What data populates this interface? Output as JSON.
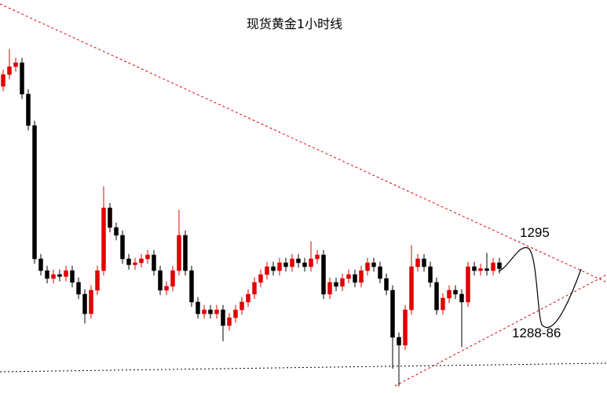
{
  "chart_data": {
    "type": "candlestick",
    "title": "现货黄金1小时线",
    "annotations": [
      "1295",
      "1288-86"
    ],
    "up_color": "#e00000",
    "down_color": "#000000",
    "ylim": [
      1280,
      1320
    ],
    "open": [
      1311.2,
      1312.4,
      1313.2,
      1313.6,
      1310.4,
      1307.2,
      1293.6,
      1292.4,
      1291.6,
      1292.0,
      1291.8,
      1292.4,
      1291.2,
      1290.0,
      1288.0,
      1290.4,
      1292.4,
      1298.8,
      1296.8,
      1296.0,
      1293.6,
      1293.0,
      1293.2,
      1293.6,
      1294.0,
      1292.4,
      1290.4,
      1290.8,
      1292.4,
      1296.0,
      1292.4,
      1289.2,
      1288.0,
      1288.4,
      1288.0,
      1288.4,
      1286.8,
      1287.6,
      1288.4,
      1289.2,
      1290.0,
      1291.2,
      1292.0,
      1292.8,
      1292.4,
      1293.2,
      1292.8,
      1293.6,
      1293.2,
      1292.8,
      1293.6,
      1294.0,
      1290.0,
      1291.2,
      1290.8,
      1291.6,
      1292.0,
      1291.2,
      1292.4,
      1293.2,
      1292.8,
      1291.6,
      1290.4,
      1285.6,
      1284.8,
      1288.4,
      1292.8,
      1293.6,
      1292.8,
      1291.2,
      1288.4,
      1289.6,
      1290.4,
      1290.0,
      1289.2,
      1292.8,
      1292.4,
      1292.6,
      1292.4,
      1293.2
    ],
    "high": [
      1312.9,
      1315.0,
      1314.1,
      1314.1,
      1310.9,
      1307.7,
      1294.1,
      1292.9,
      1292.5,
      1292.5,
      1292.9,
      1292.9,
      1291.7,
      1290.5,
      1290.9,
      1292.9,
      1301.0,
      1299.3,
      1297.3,
      1296.5,
      1294.1,
      1293.7,
      1294.1,
      1294.5,
      1294.5,
      1292.9,
      1291.3,
      1292.9,
      1298.6,
      1296.5,
      1292.9,
      1289.7,
      1288.9,
      1288.9,
      1288.9,
      1288.9,
      1288.1,
      1288.9,
      1289.7,
      1290.5,
      1291.7,
      1292.5,
      1293.3,
      1293.3,
      1293.7,
      1293.7,
      1294.1,
      1294.1,
      1293.7,
      1295.4,
      1294.5,
      1294.5,
      1291.7,
      1291.7,
      1292.1,
      1292.5,
      1292.5,
      1292.9,
      1293.7,
      1293.7,
      1293.3,
      1292.1,
      1290.9,
      1286.1,
      1288.9,
      1295.0,
      1294.1,
      1294.1,
      1293.3,
      1291.7,
      1290.1,
      1290.9,
      1290.9,
      1290.5,
      1293.3,
      1293.3,
      1293.1,
      1294.2,
      1293.7,
      1293.7
    ],
    "low": [
      1310.7,
      1311.9,
      1312.7,
      1309.9,
      1306.7,
      1293.1,
      1291.9,
      1291.1,
      1291.1,
      1291.3,
      1291.3,
      1290.7,
      1289.5,
      1287.0,
      1287.5,
      1289.9,
      1291.9,
      1296.3,
      1295.5,
      1293.1,
      1292.5,
      1292.5,
      1292.7,
      1293.1,
      1291.9,
      1289.9,
      1289.9,
      1290.3,
      1291.9,
      1291.9,
      1288.7,
      1287.5,
      1287.5,
      1287.5,
      1287.5,
      1285.2,
      1286.3,
      1287.1,
      1287.9,
      1288.7,
      1289.5,
      1290.7,
      1291.5,
      1291.9,
      1291.9,
      1292.3,
      1292.3,
      1292.7,
      1292.3,
      1292.3,
      1293.1,
      1289.5,
      1289.5,
      1290.3,
      1290.3,
      1291.1,
      1290.7,
      1290.7,
      1291.9,
      1292.3,
      1291.1,
      1289.9,
      1282.4,
      1280.6,
      1284.3,
      1287.9,
      1292.3,
      1292.3,
      1290.7,
      1287.9,
      1287.9,
      1289.1,
      1289.5,
      1284.6,
      1288.7,
      1291.9,
      1291.9,
      1291.9,
      1291.9,
      1292.1
    ],
    "close": [
      1312.4,
      1313.2,
      1313.6,
      1310.4,
      1307.2,
      1293.6,
      1292.4,
      1291.6,
      1292.0,
      1291.8,
      1292.4,
      1291.2,
      1290.0,
      1288.0,
      1290.4,
      1292.4,
      1298.8,
      1296.8,
      1296.0,
      1293.6,
      1293.0,
      1293.2,
      1293.6,
      1294.0,
      1292.4,
      1290.4,
      1290.8,
      1292.4,
      1296.0,
      1292.4,
      1289.2,
      1288.0,
      1288.4,
      1288.0,
      1288.4,
      1286.8,
      1287.6,
      1288.4,
      1289.2,
      1290.0,
      1291.2,
      1292.0,
      1292.8,
      1292.4,
      1293.2,
      1292.8,
      1293.6,
      1293.2,
      1292.8,
      1293.6,
      1294.0,
      1290.0,
      1291.2,
      1290.8,
      1291.6,
      1292.0,
      1291.2,
      1292.4,
      1293.2,
      1292.8,
      1291.6,
      1290.4,
      1285.6,
      1284.8,
      1288.4,
      1292.8,
      1293.6,
      1292.8,
      1291.2,
      1288.4,
      1289.6,
      1290.4,
      1290.0,
      1289.2,
      1292.8,
      1292.4,
      1292.6,
      1292.4,
      1293.2,
      1292.6
    ]
  }
}
